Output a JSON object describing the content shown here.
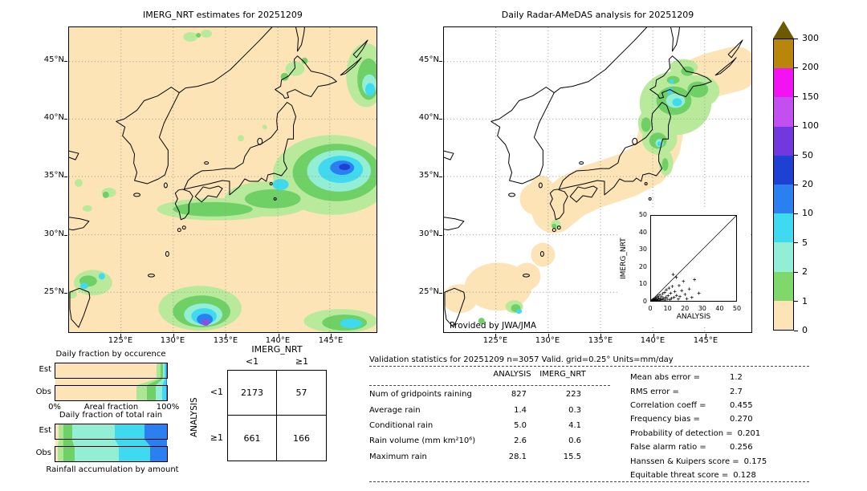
{
  "left_map": {
    "title": "IMERG_NRT estimates for 20251209",
    "lat_ticks": [
      "45°N",
      "40°N",
      "35°N",
      "30°N",
      "25°N"
    ],
    "lon_ticks": [
      "125°E",
      "130°E",
      "135°E",
      "140°E",
      "145°E"
    ]
  },
  "right_map": {
    "title": "Daily Radar-AMeDAS analysis for 20251209",
    "credit": "Provided by JWA/JMA",
    "lat_ticks": [
      "45°N",
      "40°N",
      "35°N",
      "30°N",
      "25°N"
    ],
    "lon_ticks": [
      "125°E",
      "130°E",
      "135°E",
      "140°E",
      "145°E"
    ],
    "inset": {
      "xlabel": "ANALYSIS",
      "ylabel": "IMERG_NRT"
    }
  },
  "colorbar": {
    "labels": [
      "300",
      "200",
      "150",
      "100",
      "50",
      "20",
      "10",
      "5",
      "2",
      "1",
      "0"
    ],
    "segment_colors_top_to_bottom": [
      "#b8860b",
      "#f312f3",
      "#c44ff0",
      "#7038dd",
      "#1e41d4",
      "#2b7ff0",
      "#3fd9f0",
      "#93eed6",
      "#7fd96a",
      "#fce4b6"
    ],
    "overflow_triangle_color": "#6b5a00",
    "units": "mm/day"
  },
  "occurrence_chart": {
    "title": "Daily fraction by occurence",
    "row_labels": [
      "Est",
      "Obs"
    ],
    "axis_left": "0%",
    "axis_label": "Areal fraction",
    "axis_right": "100%"
  },
  "volume_chart": {
    "title": "Daily fraction of total rain",
    "row_labels": [
      "Est",
      "Obs"
    ],
    "caption": "Rainfall accumulation by amount"
  },
  "contingency": {
    "col_group": "IMERG_NRT",
    "row_group": "ANALYSIS",
    "col_labels": [
      "<1",
      "≥1"
    ],
    "row_labels": [
      "<1",
      "≥1"
    ],
    "cells": [
      [
        "2173",
        "57"
      ],
      [
        "661",
        "166"
      ]
    ]
  },
  "stats": {
    "header": "Validation statistics for 20251209  n=3057 Valid. grid=0.25° Units=mm/day",
    "columns": [
      "ANALYSIS",
      "IMERG_NRT"
    ],
    "rows": [
      {
        "label": "Num of gridpoints raining",
        "analysis": "827",
        "imerg": "223"
      },
      {
        "label": "Average rain",
        "analysis": "1.4",
        "imerg": "0.3"
      },
      {
        "label": "Conditional rain",
        "analysis": "5.0",
        "imerg": "4.1"
      },
      {
        "label": "Rain volume (mm km²10⁶)",
        "analysis": "2.6",
        "imerg": "0.6"
      },
      {
        "label": "Maximum rain",
        "analysis": "28.1",
        "imerg": "15.5"
      }
    ],
    "metrics": [
      {
        "label": "Mean abs error =",
        "value": "1.2"
      },
      {
        "label": "RMS error =",
        "value": "2.7"
      },
      {
        "label": "Correlation coeff =",
        "value": "0.455"
      },
      {
        "label": "Frequency bias =",
        "value": "0.270"
      },
      {
        "label": "Probability of detection =",
        "value": "0.201"
      },
      {
        "label": "False alarm ratio =",
        "value": "0.256"
      },
      {
        "label": "Hanssen & Kuipers score =",
        "value": "0.175"
      },
      {
        "label": "Equitable threat score =",
        "value": "0.128"
      }
    ]
  },
  "chart_data": [
    {
      "name": "imerg_precip_map",
      "type": "heatmap",
      "title": "IMERG_NRT estimates for 20251209",
      "units": "mm/day",
      "lon_ticks": [
        "125°E",
        "130°E",
        "135°E",
        "140°E",
        "145°E"
      ],
      "lat_ticks": [
        "45°N",
        "40°N",
        "35°N",
        "30°N",
        "25°N"
      ],
      "color_levels": [
        0,
        1,
        2,
        5,
        10,
        20,
        50,
        100,
        150,
        200,
        300
      ],
      "features": [
        "large rain system east of Honshu near 32-36N 142-149E peaking 20-100 mm/day",
        "light rain band along 29-31N from 129E to 141E (1-5 mm/day)",
        "strong cell near 22-24N 131-134E peaking 50-150 mm/day at south edge",
        "rain area in northeast corner near 39-44N 146-149E (2-20 mm/day)",
        "scattered cells near Taiwan 23-25N 121-124E (1-20 mm/day)",
        "rain patch along 22-23N 141-148E (1-10 mm/day)",
        "isolated light cells over central Japan and west of Kyushu (1-2 mm/day)"
      ]
    },
    {
      "name": "radar_precip_map",
      "type": "heatmap",
      "title": "Daily Radar-AMeDAS analysis for 20251209",
      "units": "mm/day",
      "credit": "Provided by JWA/JMA",
      "lon_ticks": [
        "125°E",
        "130°E",
        "135°E",
        "140°E",
        "145°E"
      ],
      "lat_ticks": [
        "45°N",
        "40°N",
        "35°N",
        "30°N",
        "25°N"
      ],
      "color_levels": [
        0,
        1,
        2,
        5,
        10,
        20,
        50,
        100,
        150,
        200,
        300
      ],
      "features": [
        "radar coverage swath (0-1 mm/day tan) along entire Japanese archipelago from Okinawa to Hokkaido",
        "rain over Hokkaido and northern Tohoku 38-45N 139-145E, 1-20 mm/day with cyan cores",
        "light rain tail along Pacific coast of Tohoku (1-5 mm/day)",
        "small rain cells north of Taiwan near 24-25N (1-10 mm/day)",
        "isolated light cell west of Kyushu (1-2 mm/day)"
      ]
    },
    {
      "name": "inset_scatter",
      "type": "scatter",
      "xlabel": "ANALYSIS",
      "ylabel": "IMERG_NRT",
      "xlim": [
        0,
        50
      ],
      "ylim": [
        0,
        50
      ],
      "ticks": [
        0,
        10,
        20,
        30,
        40,
        50
      ],
      "diagonal": true,
      "marker": "+",
      "points": [
        [
          0.3,
          0.1
        ],
        [
          0.6,
          0.4
        ],
        [
          1,
          0.2
        ],
        [
          1.2,
          0.8
        ],
        [
          1.5,
          0.3
        ],
        [
          1.8,
          1.2
        ],
        [
          2,
          0.1
        ],
        [
          2.2,
          0.6
        ],
        [
          2.5,
          1.5
        ],
        [
          2.8,
          0.3
        ],
        [
          3,
          0.8
        ],
        [
          3.2,
          2.1
        ],
        [
          3.5,
          0.2
        ],
        [
          3.8,
          1
        ],
        [
          4,
          2.8
        ],
        [
          4.2,
          0.5
        ],
        [
          4.5,
          1.8
        ],
        [
          5,
          0.3
        ],
        [
          5.2,
          3.5
        ],
        [
          5.5,
          1.2
        ],
        [
          6,
          0.6
        ],
        [
          6.2,
          2.4
        ],
        [
          6.8,
          4.2
        ],
        [
          7,
          0.9
        ],
        [
          7.5,
          1.6
        ],
        [
          8,
          5
        ],
        [
          8.2,
          0.4
        ],
        [
          8.8,
          2.2
        ],
        [
          9,
          6.5
        ],
        [
          9.5,
          1
        ],
        [
          10,
          3
        ],
        [
          10.5,
          7.5
        ],
        [
          11,
          0.6
        ],
        [
          11.5,
          4.5
        ],
        [
          12,
          1.5
        ],
        [
          12.5,
          8.5
        ],
        [
          13,
          15.5
        ],
        [
          13.5,
          2
        ],
        [
          14,
          5.5
        ],
        [
          14.8,
          13.8
        ],
        [
          15,
          3.2
        ],
        [
          16,
          1
        ],
        [
          16.5,
          9
        ],
        [
          17,
          2.5
        ],
        [
          18,
          6
        ],
        [
          19,
          11.5
        ],
        [
          20,
          3.8
        ],
        [
          21,
          1.2
        ],
        [
          22.5,
          7
        ],
        [
          24,
          2
        ],
        [
          25.5,
          12.5
        ],
        [
          28.1,
          4.5
        ]
      ]
    },
    {
      "name": "areal_fraction",
      "type": "bar",
      "stacked": true,
      "orientation": "horizontal",
      "title": "Daily fraction by occurence",
      "categories": [
        "Est",
        "Obs"
      ],
      "xlabel": "Areal fraction",
      "xlim": [
        "0%",
        "100%"
      ],
      "levels_mm_per_day": [
        "0-1",
        "1-2",
        "2-5",
        "5-10",
        "10-20",
        ">20"
      ],
      "level_colors": [
        "#fce4b6",
        "#abe692",
        "#6fd065",
        "#93eed6",
        "#3fd9f0",
        "#2b7ff0"
      ],
      "est_pct": [
        91,
        3,
        2.5,
        1.5,
        1.2,
        0.8
      ],
      "obs_pct": [
        73,
        9,
        8,
        6,
        3,
        1
      ]
    },
    {
      "name": "rain_fraction",
      "type": "bar",
      "stacked": true,
      "orientation": "horizontal",
      "title": "Daily fraction of total rain",
      "categories": [
        "Est",
        "Obs"
      ],
      "caption": "Rainfall accumulation by amount",
      "levels_mm_per_day": [
        "0-1",
        "1-2",
        "2-5",
        "5-10",
        "10-20",
        ">20"
      ],
      "level_colors": [
        "#fce4b6",
        "#abe692",
        "#6fd065",
        "#93eed6",
        "#3fd9f0",
        "#2b7ff0"
      ],
      "est_pct": [
        3,
        4,
        8,
        38,
        27,
        20
      ],
      "obs_pct": [
        2,
        5,
        10,
        40,
        28,
        15
      ]
    },
    {
      "name": "contingency_table",
      "type": "table",
      "col_group": "IMERG_NRT",
      "row_group": "ANALYSIS",
      "cols": [
        "<1",
        "≥1"
      ],
      "rows": [
        "<1",
        "≥1"
      ],
      "values": [
        [
          2173,
          57
        ],
        [
          661,
          166
        ]
      ]
    },
    {
      "name": "validation_stats",
      "type": "table",
      "columns": [
        "ANALYSIS",
        "IMERG_NRT"
      ],
      "rows": [
        [
          "Num of gridpoints raining",
          827,
          223
        ],
        [
          "Average rain",
          1.4,
          0.3
        ],
        [
          "Conditional rain",
          5.0,
          4.1
        ],
        [
          "Rain volume (mm km²10⁶)",
          2.6,
          0.6
        ],
        [
          "Maximum rain",
          28.1,
          15.5
        ]
      ],
      "scores": {
        "Mean abs error": 1.2,
        "RMS error": 2.7,
        "Correlation coeff": 0.455,
        "Frequency bias": 0.27,
        "Probability of detection": 0.201,
        "False alarm ratio": 0.256,
        "Hanssen & Kuipers score": 0.175,
        "Equitable threat score": 0.128
      }
    }
  ]
}
